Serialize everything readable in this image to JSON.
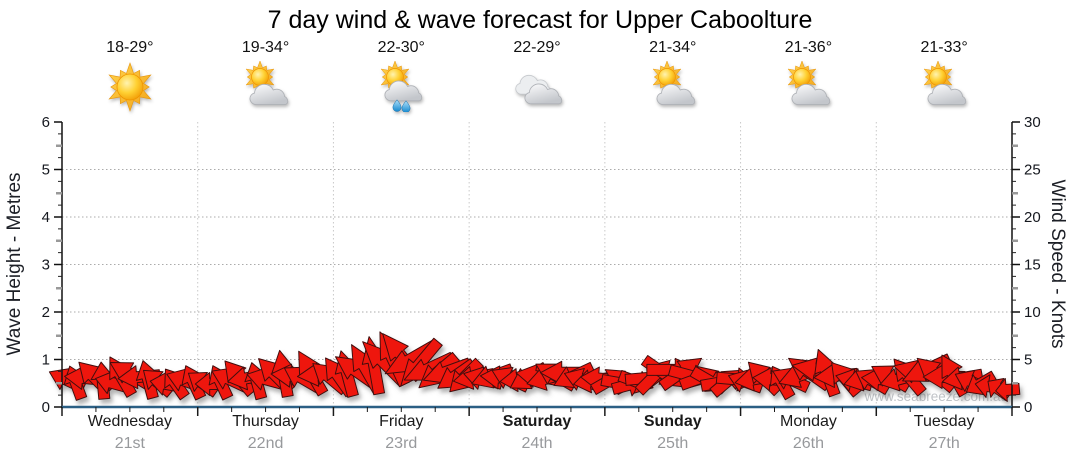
{
  "title": "7 day wind & wave forecast for Upper Caboolture",
  "watermark": "www.seabreeze.com.au",
  "forecast": {
    "days": [
      {
        "name": "Wednesday",
        "date": "21st",
        "temps": "18-29°",
        "icon": "sun",
        "weekend": false
      },
      {
        "name": "Thursday",
        "date": "22nd",
        "temps": "19-34°",
        "icon": "sun-cloud",
        "weekend": false
      },
      {
        "name": "Friday",
        "date": "23rd",
        "temps": "22-30°",
        "icon": "sun-cloud-rain",
        "weekend": false
      },
      {
        "name": "Saturday",
        "date": "24th",
        "temps": "22-29°",
        "icon": "clouds",
        "weekend": true
      },
      {
        "name": "Sunday",
        "date": "25th",
        "temps": "21-34°",
        "icon": "sun-cloud",
        "weekend": true
      },
      {
        "name": "Monday",
        "date": "26th",
        "temps": "21-36°",
        "icon": "sun-cloud",
        "weekend": false
      },
      {
        "name": "Tuesday",
        "date": "27th",
        "temps": "21-33°",
        "icon": "sun-cloud",
        "weekend": false
      }
    ]
  },
  "chart_data": {
    "type": "wind-arrow-band",
    "title": "7 day wind & wave forecast for Upper Caboolture",
    "x_axis": {
      "days": [
        "Wednesday 21st",
        "Thursday 22nd",
        "Friday 23rd",
        "Saturday 24th",
        "Sunday 25th",
        "Monday 26th",
        "Tuesday 27th"
      ],
      "minor_tick_hours": 6,
      "line_color": "#2b5f84"
    },
    "y_left": {
      "title": "Wave Height - Metres",
      "min": 0,
      "max": 6,
      "major_step": 1
    },
    "y_right": {
      "title": "Wind Speed - Knots",
      "min": 0,
      "max": 30,
      "major_step": 5
    },
    "grid": {
      "horizontal_at_metres": [
        1,
        2,
        3,
        4,
        5
      ],
      "vertical_at_day_boundaries": true,
      "style": "dotted"
    },
    "wind": {
      "units": "knots",
      "angle_convention": "0=pointing right, degrees clockwise in screen coords",
      "arrow_color": "#ee1511",
      "arrow_outline": "#431010",
      "points_per_day": 15,
      "points": [
        [
          4.6,
          205
        ],
        [
          4.2,
          250
        ],
        [
          4.9,
          185
        ],
        [
          5.1,
          225
        ],
        [
          4.5,
          265
        ],
        [
          4.1,
          195
        ],
        [
          5.3,
          240
        ],
        [
          5.6,
          210
        ],
        [
          5.1,
          175
        ],
        [
          4.7,
          255
        ],
        [
          4.3,
          220
        ],
        [
          3.9,
          190
        ],
        [
          4.1,
          235
        ],
        [
          4.5,
          200
        ],
        [
          4.3,
          245
        ],
        [
          4.1,
          215
        ],
        [
          3.9,
          180
        ],
        [
          4.3,
          245
        ],
        [
          4.7,
          205
        ],
        [
          5.1,
          230
        ],
        [
          4.9,
          170
        ],
        [
          4.5,
          255
        ],
        [
          4.7,
          195
        ],
        [
          5.5,
          225
        ],
        [
          5.7,
          260
        ],
        [
          5.3,
          185
        ],
        [
          4.9,
          210
        ],
        [
          5.9,
          240
        ],
        [
          5.5,
          175
        ],
        [
          5.1,
          220
        ],
        [
          5.3,
          235
        ],
        [
          5.7,
          255
        ],
        [
          6.1,
          215
        ],
        [
          6.6,
          240
        ],
        [
          7.1,
          260
        ],
        [
          7.6,
          225
        ],
        [
          8.3,
          245
        ],
        [
          8.7,
          230
        ],
        [
          8.1,
          150
        ],
        [
          7.3,
          130
        ],
        [
          6.5,
          155
        ],
        [
          5.9,
          140
        ],
        [
          6.0,
          160
        ],
        [
          5.3,
          145
        ],
        [
          5.1,
          135
        ],
        [
          5.0,
          170
        ],
        [
          4.8,
          195
        ],
        [
          5.2,
          160
        ],
        [
          5.0,
          185
        ],
        [
          4.8,
          205
        ],
        [
          4.6,
          175
        ],
        [
          5.0,
          150
        ],
        [
          5.2,
          190
        ],
        [
          4.8,
          165
        ],
        [
          5.4,
          210
        ],
        [
          5.8,
          180
        ],
        [
          5.2,
          155
        ],
        [
          4.6,
          200
        ],
        [
          4.4,
          170
        ],
        [
          4.8,
          185
        ],
        [
          4.5,
          330
        ],
        [
          4.1,
          10
        ],
        [
          3.7,
          345
        ],
        [
          4.3,
          20
        ],
        [
          4.9,
          355
        ],
        [
          5.3,
          315
        ],
        [
          5.7,
          35
        ],
        [
          6.3,
          0
        ],
        [
          5.9,
          325
        ],
        [
          5.3,
          15
        ],
        [
          4.9,
          340
        ],
        [
          4.5,
          30
        ],
        [
          4.1,
          350
        ],
        [
          4.3,
          320
        ],
        [
          4.7,
          5
        ],
        [
          4.3,
          200
        ],
        [
          4.7,
          170
        ],
        [
          5.1,
          225
        ],
        [
          4.7,
          185
        ],
        [
          4.3,
          240
        ],
        [
          4.7,
          205
        ],
        [
          5.3,
          160
        ],
        [
          5.9,
          215
        ],
        [
          6.3,
          190
        ],
        [
          5.9,
          250
        ],
        [
          5.3,
          175
        ],
        [
          4.9,
          230
        ],
        [
          4.5,
          195
        ],
        [
          4.7,
          165
        ],
        [
          4.5,
          210
        ],
        [
          4.7,
          185
        ],
        [
          5.1,
          210
        ],
        [
          4.7,
          165
        ],
        [
          5.3,
          230
        ],
        [
          5.9,
          195
        ],
        [
          6.3,
          155
        ],
        [
          5.7,
          220
        ],
        [
          5.1,
          180
        ],
        [
          5.5,
          240
        ],
        [
          4.9,
          170
        ],
        [
          4.3,
          205
        ],
        [
          3.9,
          150
        ],
        [
          3.5,
          190
        ],
        [
          3.1,
          215
        ],
        [
          2.9,
          175
        ]
      ]
    }
  },
  "colors": {
    "arrow_fill": "#ee1511",
    "arrow_outline": "#431010",
    "x_axis_line": "#2b5f84",
    "grid_dots": "#ababab",
    "date_gray": "#97999c",
    "watermark_gray": "#c0c3c7"
  }
}
